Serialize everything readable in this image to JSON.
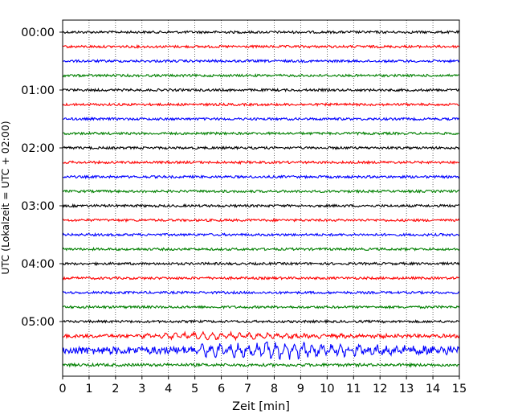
{
  "chart_data": {
    "type": "line",
    "xlabel": "Zeit  [min]",
    "ylabel": "UTC (Lokalzeit = UTC + 02:00)",
    "xlim": [
      0,
      15
    ],
    "x_ticks": [
      "0",
      "1",
      "2",
      "3",
      "4",
      "5",
      "6",
      "7",
      "8",
      "9",
      "10",
      "11",
      "12",
      "13",
      "14",
      "15"
    ],
    "y_ticks": [
      "00:00",
      "01:00",
      "02:00",
      "03:00",
      "04:00",
      "05:00"
    ],
    "grid": "vertical dotted lines at each minute",
    "trace_interval_minutes": 15,
    "trace_count": 24,
    "trace_colors": [
      "#000000",
      "#ff0000",
      "#0000ff",
      "#008000"
    ],
    "series": [
      {
        "start": "00:00",
        "color": "#000000",
        "amplitude": 0.25
      },
      {
        "start": "00:15",
        "color": "#ff0000",
        "amplitude": 0.25
      },
      {
        "start": "00:30",
        "color": "#0000ff",
        "amplitude": 0.25
      },
      {
        "start": "00:45",
        "color": "#008000",
        "amplitude": 0.25
      },
      {
        "start": "01:00",
        "color": "#000000",
        "amplitude": 0.25
      },
      {
        "start": "01:15",
        "color": "#ff0000",
        "amplitude": 0.25
      },
      {
        "start": "01:30",
        "color": "#0000ff",
        "amplitude": 0.25
      },
      {
        "start": "01:45",
        "color": "#008000",
        "amplitude": 0.25
      },
      {
        "start": "02:00",
        "color": "#000000",
        "amplitude": 0.25
      },
      {
        "start": "02:15",
        "color": "#ff0000",
        "amplitude": 0.25
      },
      {
        "start": "02:30",
        "color": "#0000ff",
        "amplitude": 0.25
      },
      {
        "start": "02:45",
        "color": "#008000",
        "amplitude": 0.25
      },
      {
        "start": "03:00",
        "color": "#000000",
        "amplitude": 0.25
      },
      {
        "start": "03:15",
        "color": "#ff0000",
        "amplitude": 0.25
      },
      {
        "start": "03:30",
        "color": "#0000ff",
        "amplitude": 0.25
      },
      {
        "start": "03:45",
        "color": "#008000",
        "amplitude": 0.25
      },
      {
        "start": "04:00",
        "color": "#000000",
        "amplitude": 0.25
      },
      {
        "start": "04:15",
        "color": "#ff0000",
        "amplitude": 0.25
      },
      {
        "start": "04:30",
        "color": "#0000ff",
        "amplitude": 0.25
      },
      {
        "start": "04:45",
        "color": "#008000",
        "amplitude": 0.25
      },
      {
        "start": "05:00",
        "color": "#000000",
        "amplitude": 0.25
      },
      {
        "start": "05:15",
        "color": "#ff0000",
        "amplitude": 0.35,
        "event_minute": 2.6
      },
      {
        "start": "05:30",
        "color": "#0000ff",
        "amplitude": 0.8,
        "event_minute": 5.0
      },
      {
        "start": "05:45",
        "color": "#008000",
        "amplitude": 0.3
      }
    ]
  }
}
